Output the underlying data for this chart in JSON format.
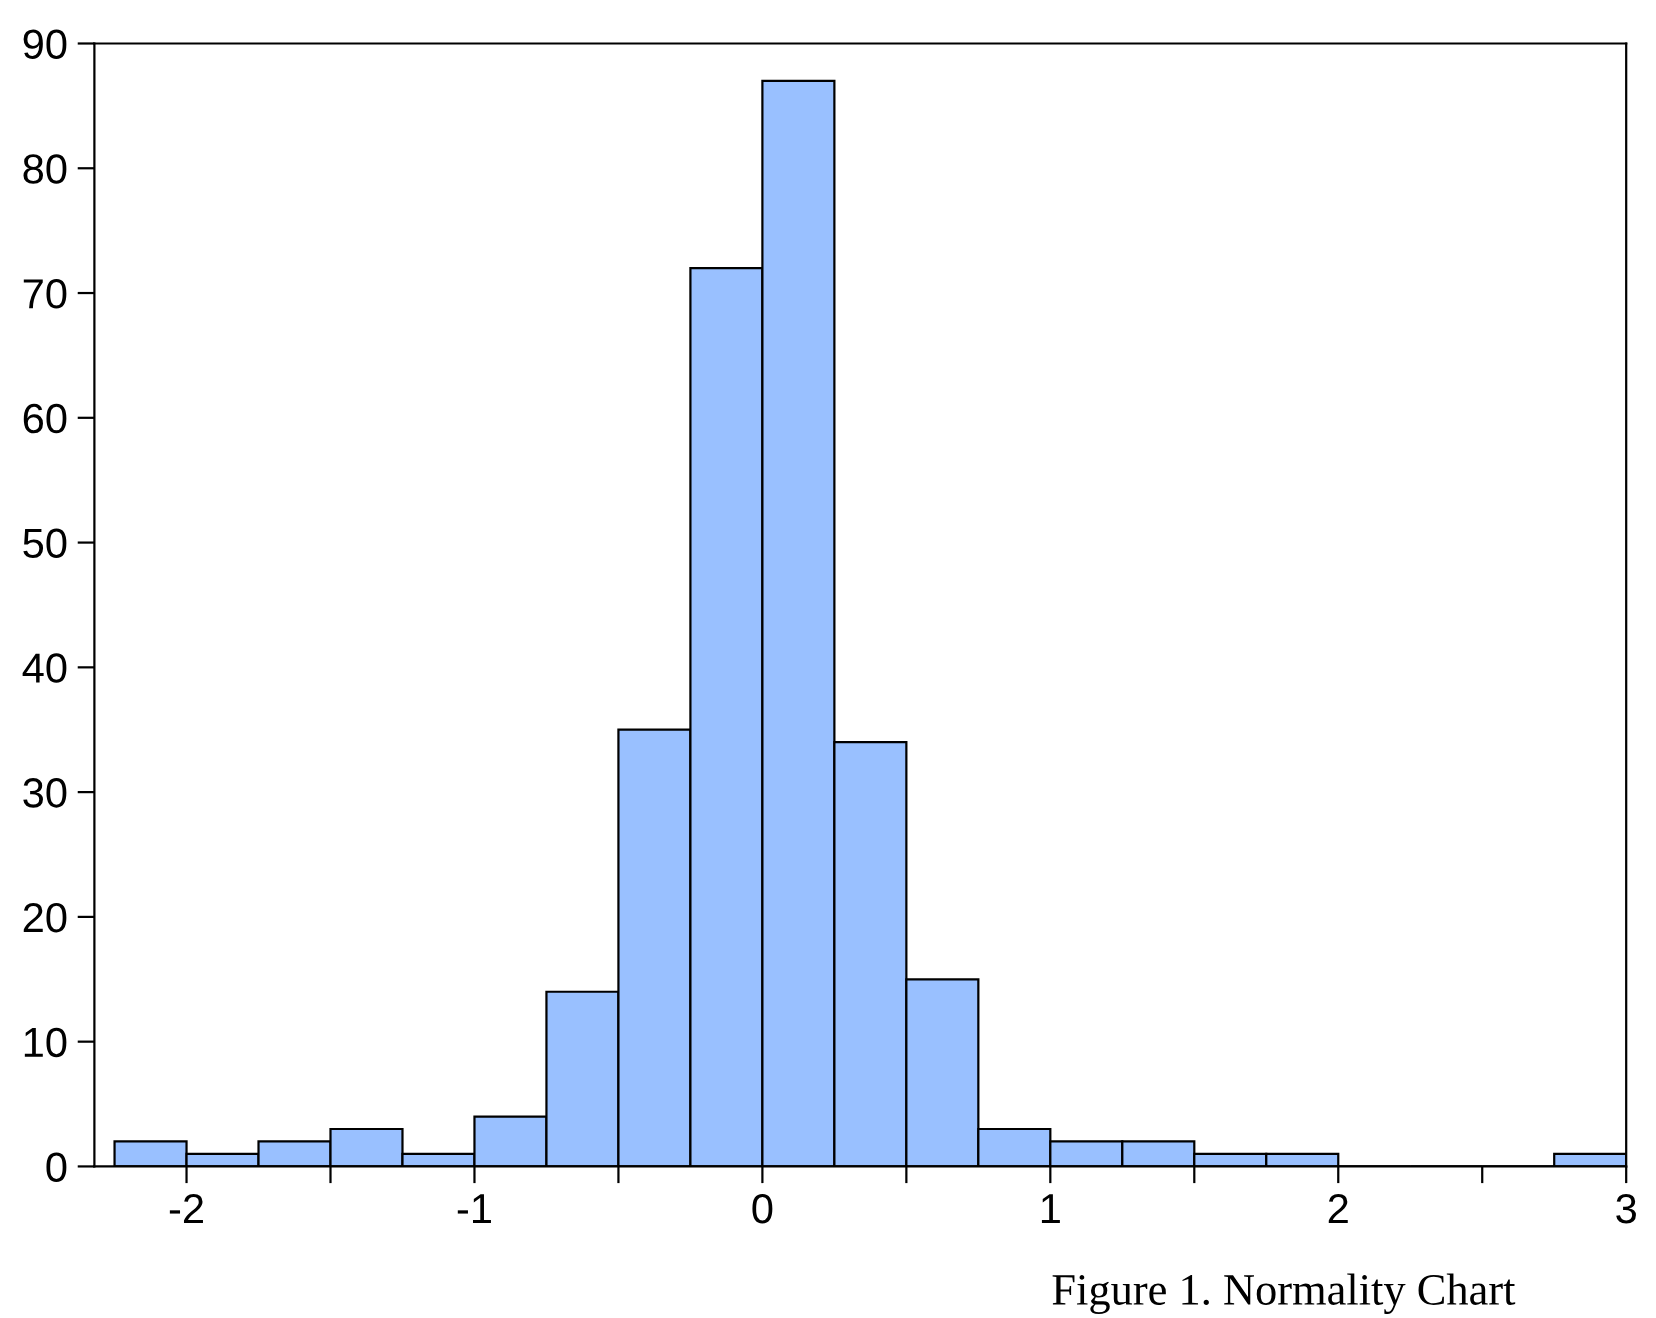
{
  "chart_data": {
    "type": "histogram",
    "bins": [
      -2.25,
      -2.0,
      -1.75,
      -1.5,
      -1.25,
      -1.0,
      -0.75,
      -0.5,
      -0.25,
      0.0,
      0.25,
      0.5,
      0.75,
      1.0,
      1.25,
      1.5,
      1.75,
      2.0,
      2.25,
      2.5,
      2.75,
      3.0
    ],
    "values": [
      2,
      1,
      2,
      3,
      1,
      4,
      14,
      35,
      72,
      87,
      34,
      15,
      3,
      2,
      2,
      1,
      1,
      0,
      0,
      0,
      1
    ],
    "color": "#99c0ff",
    "xlim": [
      -2.32,
      3.0
    ],
    "ylim": [
      0,
      90
    ],
    "xticks": [
      -2,
      {
        "value": -1.5,
        "label": null
      },
      -1,
      {
        "value": -0.5,
        "label": null
      },
      0,
      {
        "value": 0.5,
        "label": null
      },
      1,
      {
        "value": 1.5,
        "label": null
      },
      2,
      {
        "value": 2.5,
        "label": null
      },
      3
    ],
    "yticks": [
      0,
      10,
      20,
      30,
      40,
      50,
      60,
      70,
      80,
      90
    ],
    "grid": false,
    "annotations": [
      "Figure 1. Normality Chart"
    ]
  }
}
